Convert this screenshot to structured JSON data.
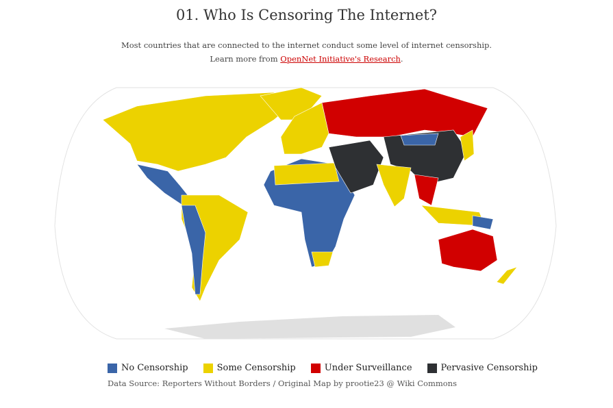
{
  "header": {
    "title": "01. Who Is Censoring The Internet?",
    "subtitle": "Most countries that are connected to the internet conduct some level of internet censorship.",
    "learn_prefix": "Learn more from ",
    "learn_link": "OpenNet Initiative's Research",
    "learn_suffix": "."
  },
  "legend": {
    "items": [
      {
        "label": "No Censorship",
        "color": "#3a65a8"
      },
      {
        "label": "Some Censorship",
        "color": "#ecd200"
      },
      {
        "label": "Under Surveillance",
        "color": "#d10000"
      },
      {
        "label": "Pervasive Censorship",
        "color": "#2e3033"
      }
    ]
  },
  "source": "Data Source: Reporters Without Borders / Original Map by prootie23 @ Wiki Commons"
}
